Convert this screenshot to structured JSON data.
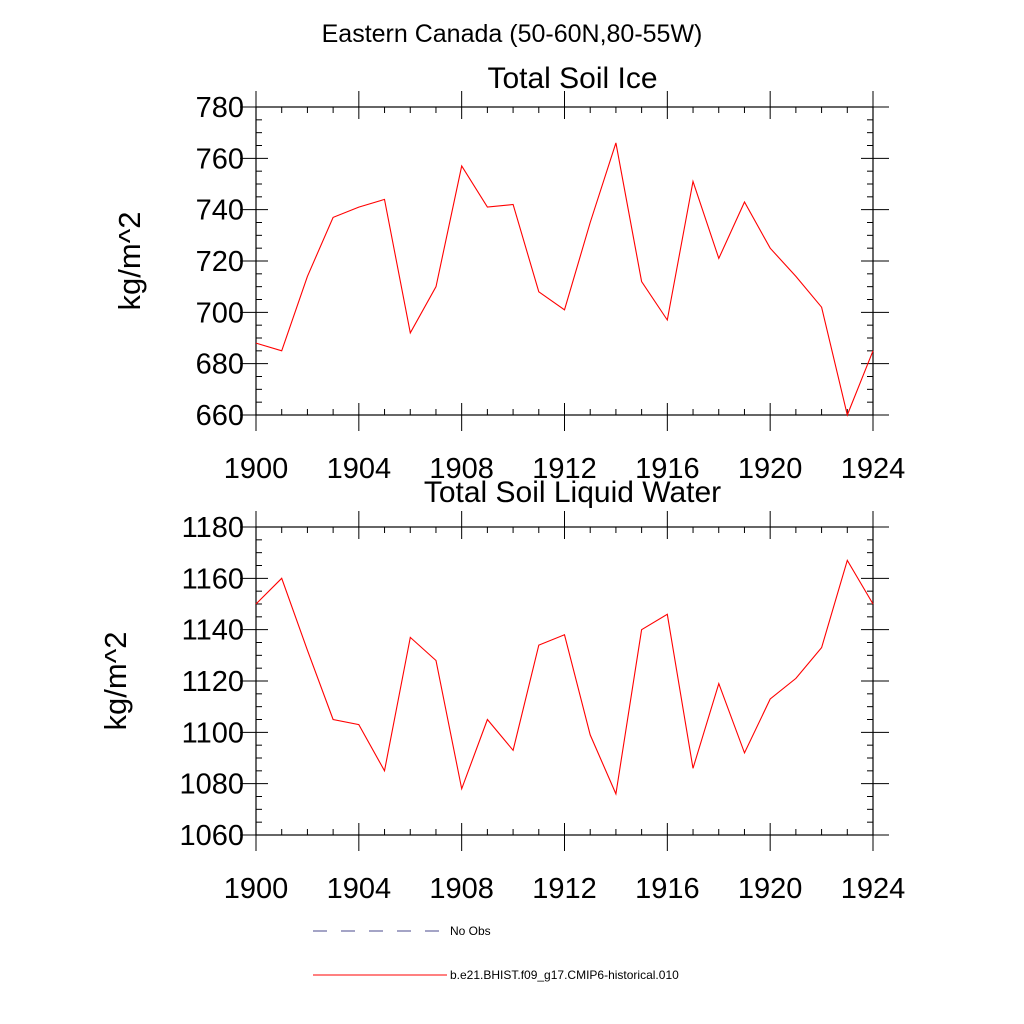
{
  "figure": {
    "suptitle": "Eastern Canada (50-60N,80-55W)"
  },
  "legend": {
    "entries": [
      {
        "label": "No Obs",
        "color": "#4a4a8c",
        "style": "dashed"
      },
      {
        "label": "b.e21.BHIST.f09_g17.CMIP6-historical.010",
        "color": "#ff0000",
        "style": "solid"
      }
    ]
  },
  "chart_data": [
    {
      "type": "line",
      "title": "Total Soil Ice",
      "xlabel": "",
      "ylabel": "kg/m^2",
      "xlim": [
        1900,
        1924
      ],
      "ylim": [
        660,
        780
      ],
      "xticks": [
        1900,
        1904,
        1908,
        1912,
        1916,
        1920,
        1924
      ],
      "yticks": [
        660,
        680,
        700,
        720,
        740,
        760,
        780
      ],
      "grid": false,
      "series": [
        {
          "color": "#ff0000",
          "x": [
            1900,
            1901,
            1902,
            1903,
            1904,
            1905,
            1906,
            1907,
            1908,
            1909,
            1910,
            1911,
            1912,
            1913,
            1914,
            1915,
            1916,
            1917,
            1918,
            1919,
            1920,
            1921,
            1922,
            1923,
            1924
          ],
          "y": [
            688,
            685,
            714,
            737,
            741,
            744,
            692,
            710,
            757,
            741,
            742,
            708,
            701,
            735,
            766,
            712,
            697,
            751,
            721,
            743,
            725,
            714,
            702,
            660,
            685
          ]
        }
      ]
    },
    {
      "type": "line",
      "title": "Total Soil Liquid Water",
      "xlabel": "",
      "ylabel": "kg/m^2",
      "xlim": [
        1900,
        1924
      ],
      "ylim": [
        1060,
        1180
      ],
      "xticks": [
        1900,
        1904,
        1908,
        1912,
        1916,
        1920,
        1924
      ],
      "yticks": [
        1060,
        1080,
        1100,
        1120,
        1140,
        1160,
        1180
      ],
      "grid": false,
      "series": [
        {
          "color": "#ff0000",
          "x": [
            1900,
            1901,
            1902,
            1903,
            1904,
            1905,
            1906,
            1907,
            1908,
            1909,
            1910,
            1911,
            1912,
            1913,
            1914,
            1915,
            1916,
            1917,
            1918,
            1919,
            1920,
            1921,
            1922,
            1923,
            1924
          ],
          "y": [
            1150,
            1160,
            1132,
            1105,
            1103,
            1085,
            1137,
            1128,
            1078,
            1105,
            1093,
            1134,
            1138,
            1099,
            1076,
            1140,
            1146,
            1086,
            1119,
            1092,
            1113,
            1121,
            1133,
            1167,
            1150
          ]
        }
      ]
    }
  ]
}
